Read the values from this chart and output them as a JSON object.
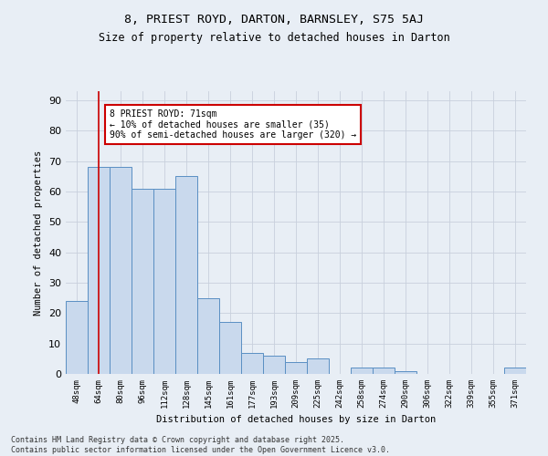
{
  "title": "8, PRIEST ROYD, DARTON, BARNSLEY, S75 5AJ",
  "subtitle": "Size of property relative to detached houses in Darton",
  "xlabel": "Distribution of detached houses by size in Darton",
  "ylabel": "Number of detached properties",
  "categories": [
    "48sqm",
    "64sqm",
    "80sqm",
    "96sqm",
    "112sqm",
    "128sqm",
    "145sqm",
    "161sqm",
    "177sqm",
    "193sqm",
    "209sqm",
    "225sqm",
    "242sqm",
    "258sqm",
    "274sqm",
    "290sqm",
    "306sqm",
    "322sqm",
    "339sqm",
    "355sqm",
    "371sqm"
  ],
  "values": [
    24,
    68,
    68,
    61,
    61,
    65,
    25,
    17,
    7,
    6,
    4,
    5,
    0,
    2,
    2,
    1,
    0,
    0,
    0,
    0,
    2
  ],
  "bar_color": "#c9d9ed",
  "bar_edge_color": "#5a8fc3",
  "grid_color": "#c8d0dc",
  "background_color": "#e8eef5",
  "vline_x": 1,
  "vline_color": "#cc0000",
  "annotation_text": "8 PRIEST ROYD: 71sqm\n← 10% of detached houses are smaller (35)\n90% of semi-detached houses are larger (320) →",
  "annotation_box_color": "#ffffff",
  "annotation_box_edge_color": "#cc0000",
  "footnote": "Contains HM Land Registry data © Crown copyright and database right 2025.\nContains public sector information licensed under the Open Government Licence v3.0.",
  "ylim": [
    0,
    93
  ],
  "yticks": [
    0,
    10,
    20,
    30,
    40,
    50,
    60,
    70,
    80,
    90
  ]
}
